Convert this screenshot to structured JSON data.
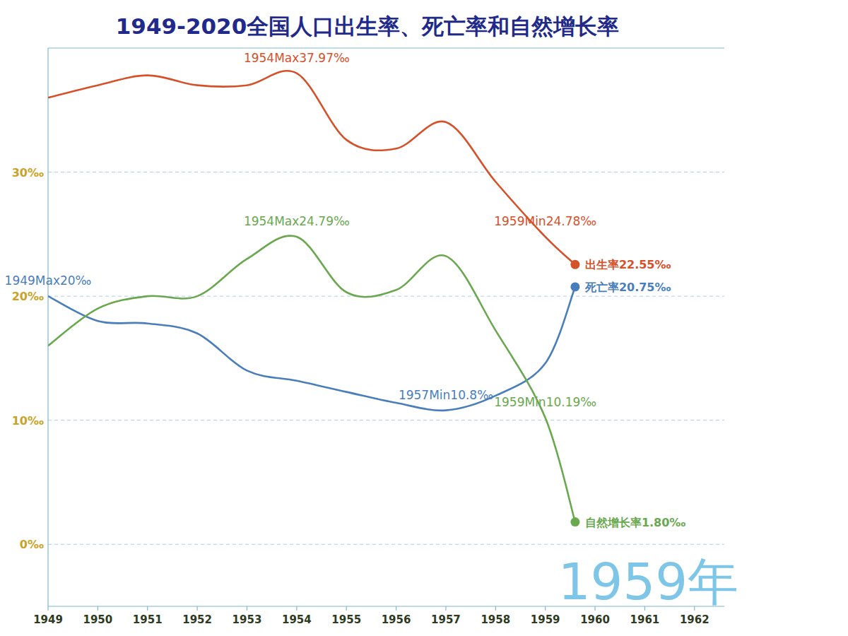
{
  "chart_data": {
    "type": "line",
    "title": "1949-2020全国人口出生率、死亡率和自然增长率",
    "watermark": "1959年",
    "x": [
      1949,
      1950,
      1951,
      1952,
      1953,
      1954,
      1955,
      1956,
      1957,
      1958,
      1959,
      1959.6
    ],
    "xlim": [
      1949,
      1962.6
    ],
    "xticks": [
      1949,
      1950,
      1951,
      1952,
      1953,
      1954,
      1955,
      1956,
      1957,
      1958,
      1959,
      1960,
      1961,
      1962
    ],
    "ylim": [
      -5,
      40
    ],
    "yticks": [
      {
        "value": 0,
        "label": "0‰"
      },
      {
        "value": 10,
        "label": "10‰"
      },
      {
        "value": 20,
        "label": "20‰"
      },
      {
        "value": 30,
        "label": "30‰"
      }
    ],
    "grid": true,
    "marker": "end",
    "series": [
      {
        "name": "出生率",
        "color": "#d5512a",
        "values": [
          36,
          37,
          37.8,
          37,
          37,
          37.97,
          32.6,
          31.9,
          34.03,
          29.22,
          24.78,
          22.55
        ],
        "value_labels": [
          null,
          null,
          null,
          null,
          null,
          null,
          null,
          null,
          null,
          null,
          null,
          "22.55‰"
        ]
      },
      {
        "name": "死亡率",
        "color": "#4a7ebb",
        "values": [
          20,
          18,
          17.8,
          17,
          14,
          13.18,
          12.28,
          11.4,
          10.8,
          11.98,
          14.59,
          20.75
        ],
        "value_labels": [
          null,
          null,
          null,
          null,
          null,
          null,
          null,
          null,
          null,
          null,
          null,
          "20.75‰"
        ]
      },
      {
        "name": "自然增长率",
        "color": "#6aa84f",
        "values": [
          16,
          19,
          20,
          20,
          23,
          24.79,
          20.32,
          20.5,
          23.23,
          17.24,
          10.19,
          1.8
        ],
        "value_labels": [
          null,
          null,
          null,
          null,
          null,
          null,
          null,
          null,
          null,
          null,
          null,
          "1.80‰"
        ]
      }
    ],
    "annotations": [
      {
        "text": "1954Max37.97‰",
        "x": 1954,
        "y": 37.97,
        "series": 0
      },
      {
        "text": "1959Min24.78‰",
        "x": 1959,
        "y": 24.78,
        "series": 0
      },
      {
        "text": "1949Max20‰",
        "x": 1949,
        "y": 20,
        "series": 1
      },
      {
        "text": "1957Min10.8‰",
        "x": 1957,
        "y": 10.8,
        "series": 1
      },
      {
        "text": "1954Max24.79‰",
        "x": 1954,
        "y": 24.79,
        "series": 2
      },
      {
        "text": "1959Min10.19‰",
        "x": 1959,
        "y": 10.19,
        "series": 2
      }
    ]
  }
}
